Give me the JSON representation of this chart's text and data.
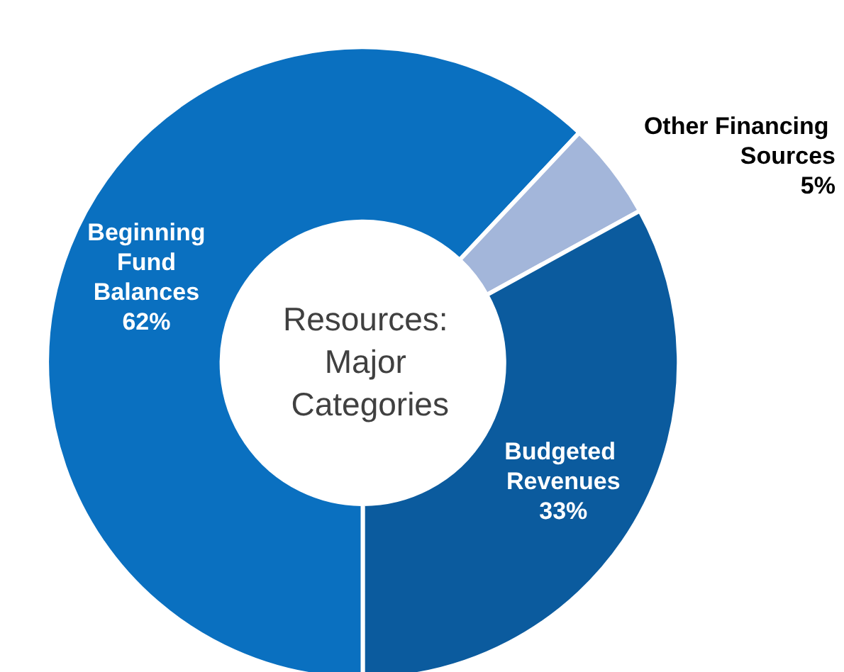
{
  "chart_data": {
    "type": "donut",
    "title": "Resources: Major Categories",
    "categories": [
      "Beginning Fund Balances",
      "Other Financing Sources",
      "Budgeted Revenues"
    ],
    "values": [
      62,
      5,
      33
    ],
    "colors": [
      "#0a70c0",
      "#a3b6da",
      "#0b5b9e"
    ],
    "value_labels": [
      "62%",
      "5%",
      "33%"
    ],
    "legend": false
  }
}
